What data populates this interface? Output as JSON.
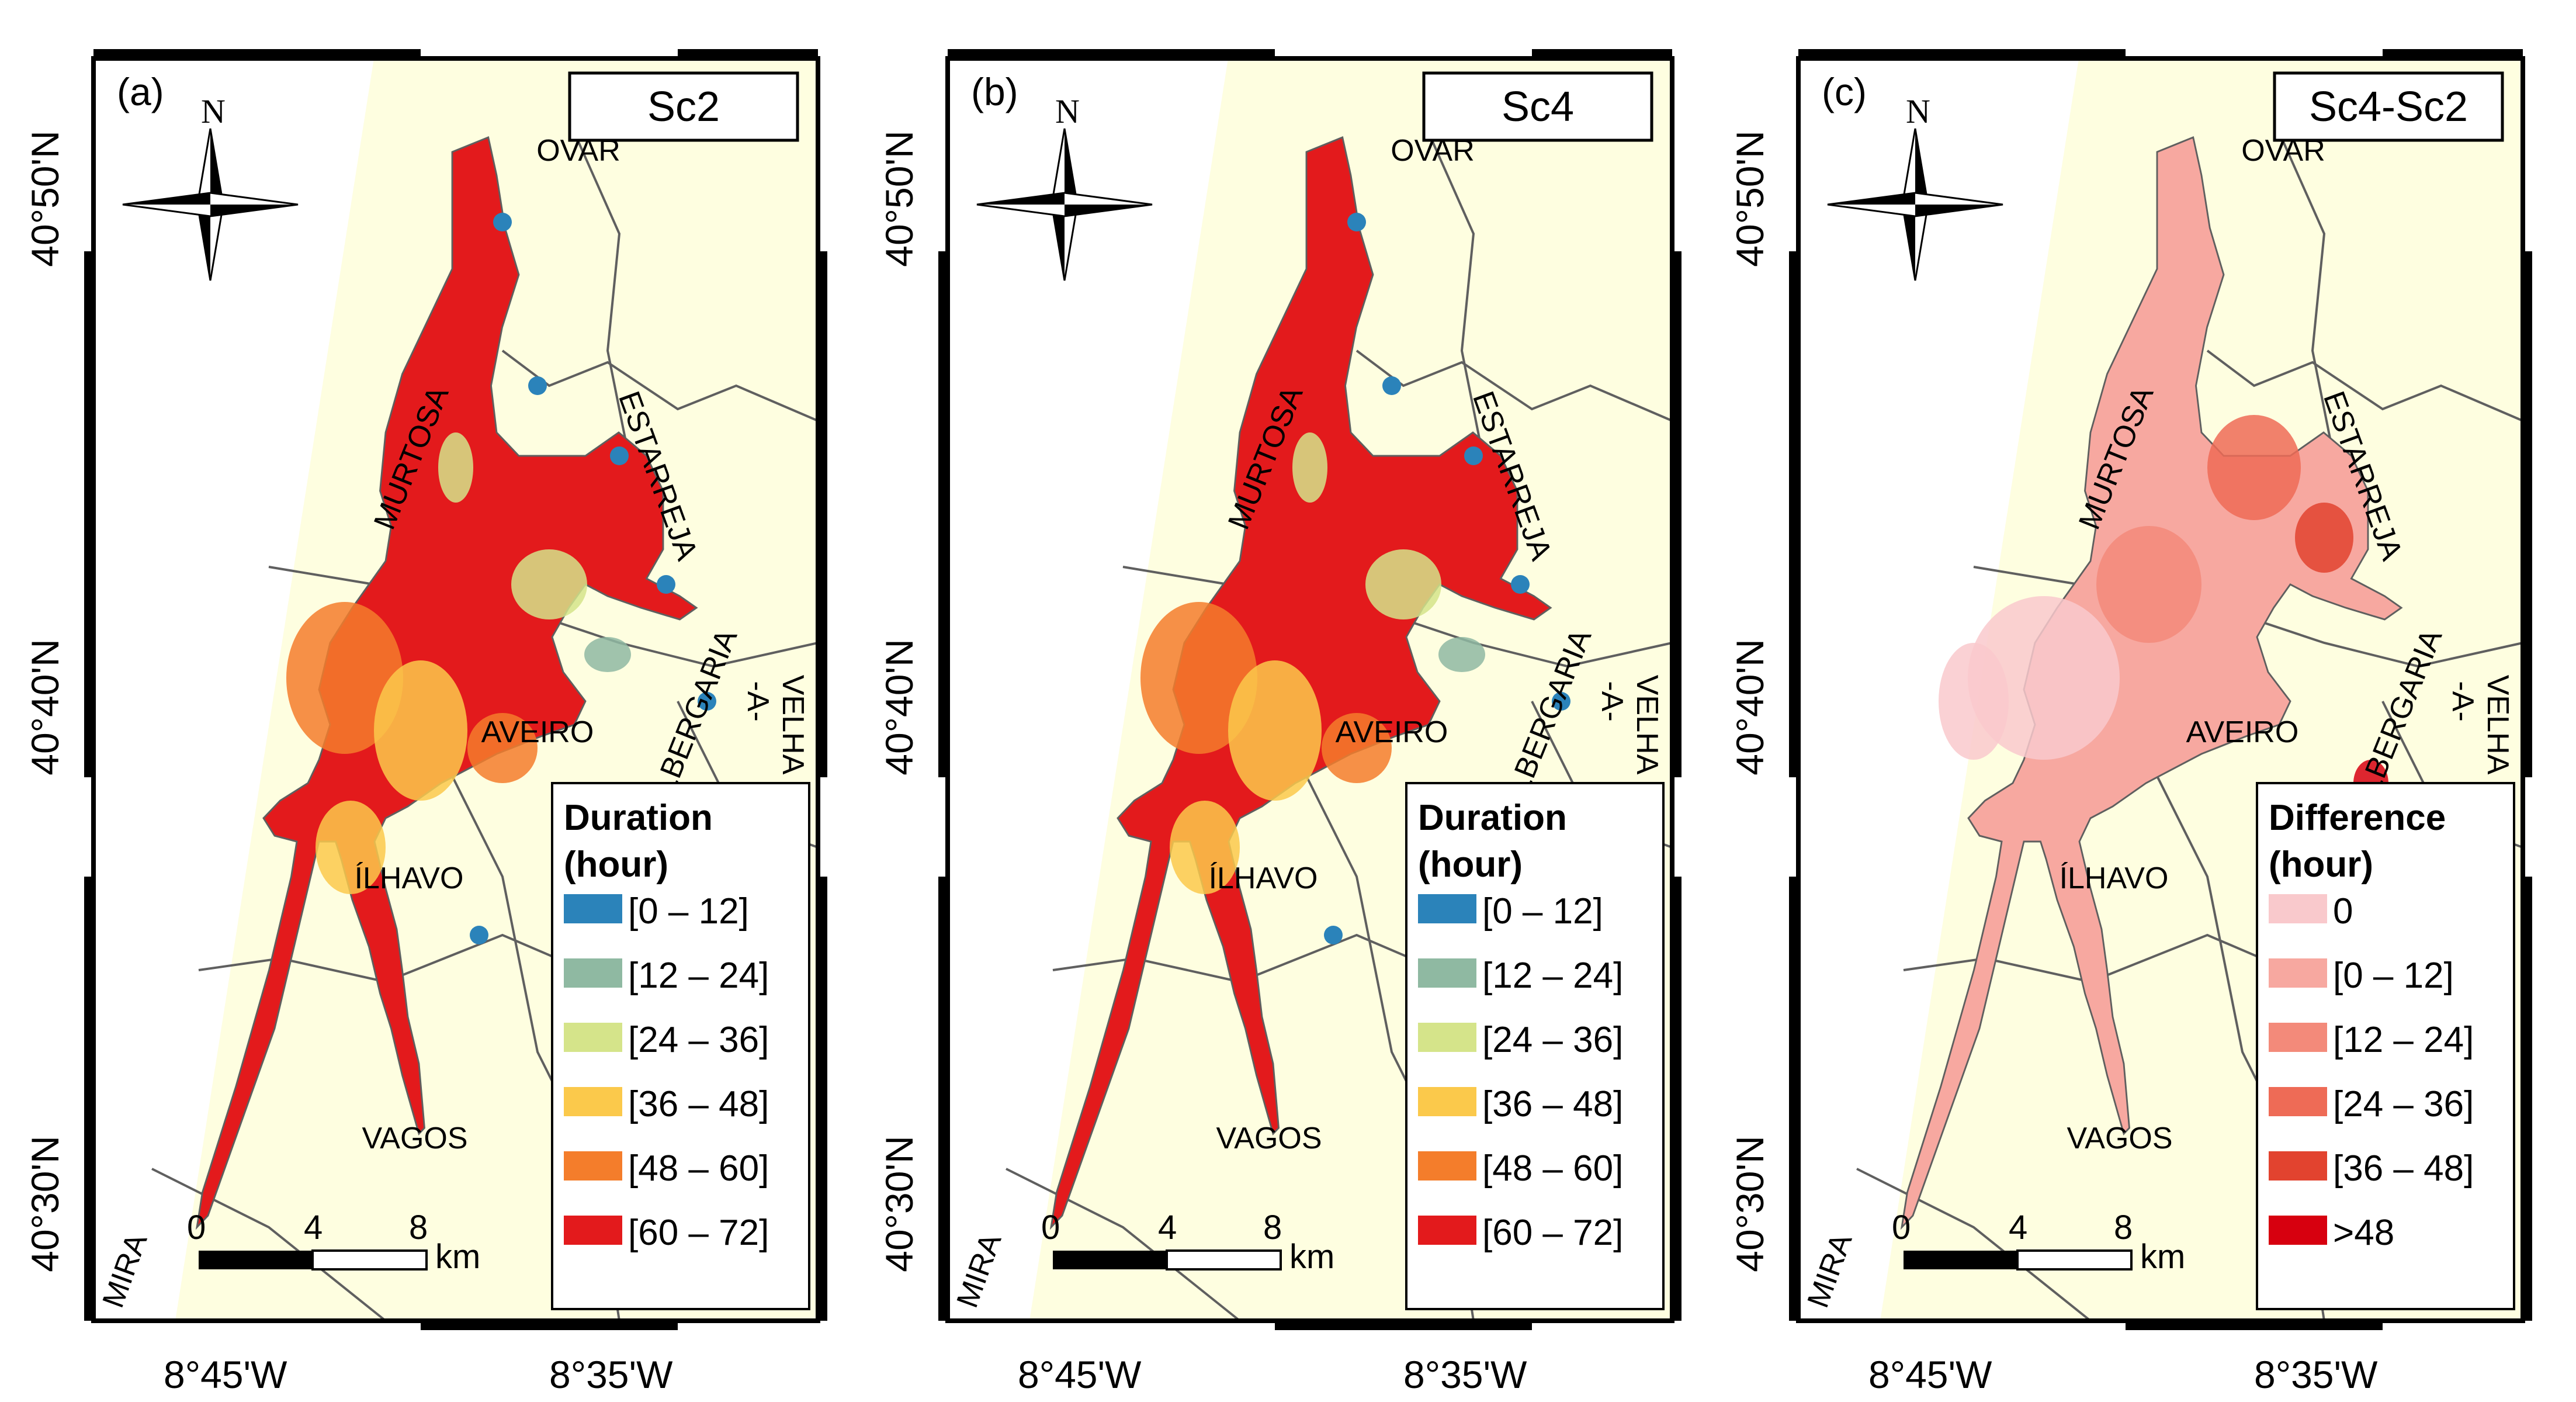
{
  "panels": [
    {
      "id": "a",
      "panel_label": "(a)",
      "title": "Sc2",
      "legend_title_1": "Duration",
      "legend_title_2": "(hour)",
      "mode": "duration",
      "legend": [
        {
          "label": "[0 – 12]",
          "color": "#2b83ba"
        },
        {
          "label": "[12 – 24]",
          "color": "#8fb9a2"
        },
        {
          "label": "[24 – 36]",
          "color": "#d5e48a"
        },
        {
          "label": "[36 – 48]",
          "color": "#fbc94b"
        },
        {
          "label": "[48 – 60]",
          "color": "#f47d2b"
        },
        {
          "label": "[60 – 72]",
          "color": "#e31a1c"
        }
      ]
    },
    {
      "id": "b",
      "panel_label": "(b)",
      "title": "Sc4",
      "legend_title_1": "Duration",
      "legend_title_2": "(hour)",
      "mode": "duration",
      "legend": [
        {
          "label": "[0 – 12]",
          "color": "#2b83ba"
        },
        {
          "label": "[12 – 24]",
          "color": "#8fb9a2"
        },
        {
          "label": "[24 – 36]",
          "color": "#d5e48a"
        },
        {
          "label": "[36 – 48]",
          "color": "#fbc94b"
        },
        {
          "label": "[48 – 60]",
          "color": "#f47d2b"
        },
        {
          "label": "[60 – 72]",
          "color": "#e31a1c"
        }
      ]
    },
    {
      "id": "c",
      "panel_label": "(c)",
      "title": "Sc4-Sc2",
      "legend_title_1": "Difference",
      "legend_title_2": "(hour)",
      "mode": "difference",
      "legend": [
        {
          "label": "0",
          "color": "#f9c9cc"
        },
        {
          "label": "[0 – 12]",
          "color": "#f7a8a0"
        },
        {
          "label": "[12 – 24]",
          "color": "#f38a7a"
        },
        {
          "label": "[24 – 36]",
          "color": "#ee6b56"
        },
        {
          "label": "[36 – 48]",
          "color": "#e2432f"
        },
        {
          "label": ">48",
          "color": "#d7000f"
        }
      ]
    }
  ],
  "places": {
    "ovar": "OVAR",
    "murtosa": "MURTOSA",
    "estarreja": "ESTARREJA",
    "albergaria_1": "ALBERGARIA",
    "albergaria_2": "-A-",
    "albergaria_3": "VELHA",
    "aveiro": "AVEIRO",
    "ilhavo": "ÍLHAVO",
    "vagos": "VAGOS",
    "mira": "MIRA"
  },
  "north_label": "N",
  "scale": {
    "n0": "0",
    "n1": "4",
    "n2": "8",
    "unit": "km"
  },
  "lat_labels": [
    "40°50'N",
    "40°40'N",
    "40°30'N"
  ],
  "lon_labels": [
    "8°45'W",
    "8°35'W"
  ],
  "colors": {
    "land": "#fefee0",
    "sea": "#ffffff",
    "boundary": "#5f5f5f",
    "frame": "#000000"
  }
}
